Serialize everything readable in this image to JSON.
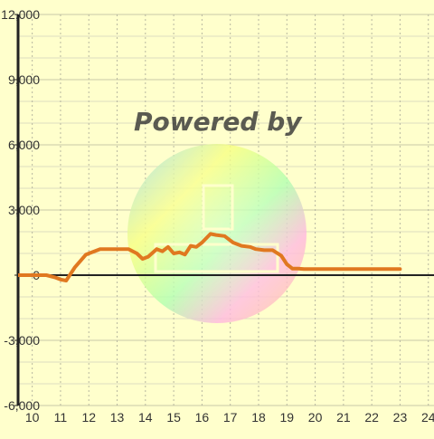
{
  "chart_data": {
    "type": "line",
    "title": "",
    "xlabel": "",
    "ylabel": "",
    "xlim": [
      9.5,
      24.2
    ],
    "ylim": [
      -6000,
      12000
    ],
    "x_ticks": [
      10,
      11,
      12,
      13,
      14,
      15,
      16,
      17,
      18,
      19,
      20,
      21,
      22,
      23,
      24
    ],
    "x_tick_labels": [
      "10",
      "11",
      "12",
      "13",
      "14",
      "15",
      "16",
      "17",
      "18",
      "19",
      "20",
      "21",
      "22",
      "23",
      "24"
    ],
    "y_ticks": [
      -6000,
      -3000,
      0,
      3000,
      6000,
      9000,
      12000
    ],
    "y_tick_labels": [
      "-6,000",
      "-3,000",
      "0",
      "3,000",
      "6,000",
      "9,000",
      "12,000"
    ],
    "grid": true,
    "series": [
      {
        "color": "#e07820",
        "x": [
          9.5,
          10.5,
          10.8,
          11.0,
          11.2,
          11.5,
          11.9,
          12.4,
          13.0,
          13.4,
          13.7,
          13.9,
          14.1,
          14.4,
          14.6,
          14.8,
          15.0,
          15.2,
          15.4,
          15.6,
          15.8,
          16.0,
          16.3,
          16.5,
          16.8,
          17.1,
          17.4,
          17.7,
          17.9,
          18.2,
          18.5,
          18.8,
          19.0,
          19.2,
          19.4,
          19.6,
          20.0,
          21.0,
          22.0,
          23.0
        ],
        "y": [
          0,
          0,
          -100,
          -200,
          -250,
          350,
          950,
          1200,
          1200,
          1200,
          1000,
          750,
          850,
          1200,
          1100,
          1300,
          1000,
          1050,
          950,
          1350,
          1300,
          1500,
          1900,
          1850,
          1800,
          1500,
          1350,
          1300,
          1200,
          1150,
          1150,
          900,
          500,
          300,
          300,
          280,
          280,
          280,
          280,
          280
        ]
      }
    ]
  },
  "watermark": {
    "text": "Powered by"
  }
}
